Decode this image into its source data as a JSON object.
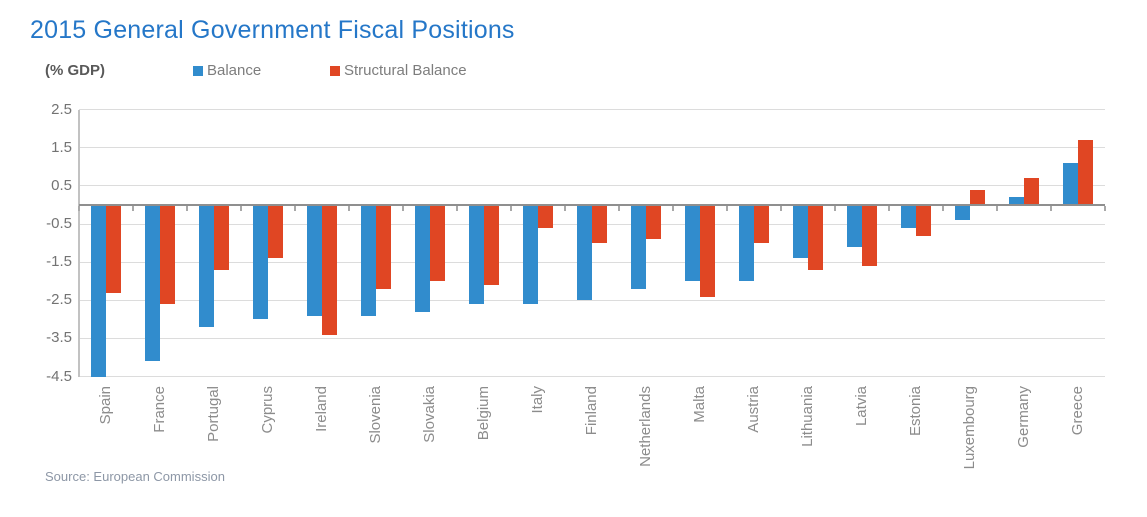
{
  "title": "2015 General Government Fiscal Positions",
  "unit_label": "(% GDP)",
  "source": "Source: European Commission",
  "legend": [
    {
      "label": "Balance",
      "color": "#318ccd"
    },
    {
      "label": "Structural Balance",
      "color": "#e04623"
    }
  ],
  "chart_data": {
    "type": "bar",
    "title": "2015 General Government Fiscal Positions",
    "ylabel": "(% GDP)",
    "xlabel": "",
    "grid": true,
    "legend_position": "top",
    "ylim": [
      -4.5,
      2.5
    ],
    "y_ticks": [
      2.5,
      1.5,
      0.5,
      -0.5,
      -1.5,
      -2.5,
      -3.5,
      -4.5
    ],
    "categories": [
      "Spain",
      "France",
      "Portugal",
      "Cyprus",
      "Ireland",
      "Slovenia",
      "Slovakia",
      "Belgium",
      "Italy",
      "Finland",
      "Netherlands",
      "Malta",
      "Austria",
      "Lithuania",
      "Latvia",
      "Estonia",
      "Luxembourg",
      "Germany",
      "Greece"
    ],
    "series": [
      {
        "name": "Balance",
        "color": "#318ccd",
        "values": [
          -4.5,
          -4.1,
          -3.2,
          -3.0,
          -2.9,
          -2.9,
          -2.8,
          -2.6,
          -2.6,
          -2.5,
          -2.2,
          -2.0,
          -2.0,
          -1.4,
          -1.1,
          -0.6,
          -0.4,
          0.2,
          1.1
        ]
      },
      {
        "name": "Structural Balance",
        "color": "#e04623",
        "values": [
          -2.3,
          -2.6,
          -1.7,
          -1.4,
          -3.4,
          -2.2,
          -2.0,
          -2.1,
          -0.6,
          -1.0,
          -0.9,
          -2.4,
          -1.0,
          -1.7,
          -1.6,
          -0.8,
          0.4,
          0.7,
          1.7
        ]
      }
    ]
  }
}
